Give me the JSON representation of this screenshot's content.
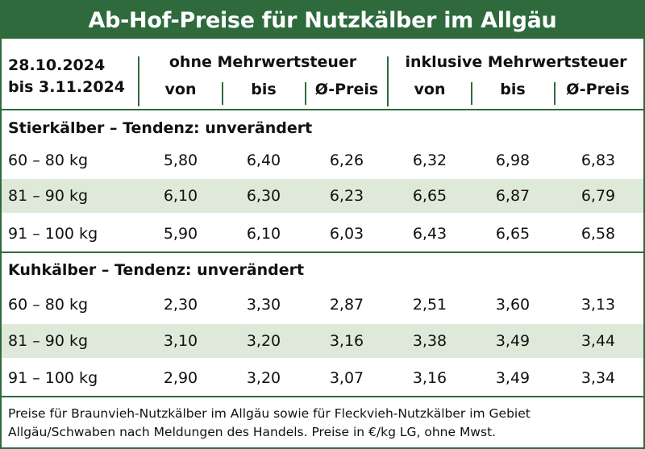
{
  "title": "Ab-Hof-Preise für Nutzkälber im Allgäu",
  "period": {
    "line1": "28.10.2024",
    "line2": "bis 3.11.2024"
  },
  "groups": {
    "without_vat": "ohne Mehrwertsteuer",
    "with_vat": "inklusive Mehrwertsteuer"
  },
  "columns": [
    "von",
    "bis",
    "Ø-Preis",
    "von",
    "bis",
    "Ø-Preis"
  ],
  "sections": [
    {
      "title": "Stierkälber – Tendenz: unverändert",
      "rows": [
        {
          "label": "60 – 80 kg",
          "values": [
            "5,80",
            "6,40",
            "6,26",
            "6,32",
            "6,98",
            "6,83"
          ]
        },
        {
          "label": "81 – 90 kg",
          "values": [
            "6,10",
            "6,30",
            "6,23",
            "6,65",
            "6,87",
            "6,79"
          ]
        },
        {
          "label": "91 – 100 kg",
          "values": [
            "5,90",
            "6,10",
            "6,03",
            "6,43",
            "6,65",
            "6,58"
          ]
        }
      ]
    },
    {
      "title": "Kuhkälber – Tendenz: unverändert",
      "rows": [
        {
          "label": "60 – 80 kg",
          "values": [
            "2,30",
            "3,30",
            "2,87",
            "2,51",
            "3,60",
            "3,13"
          ]
        },
        {
          "label": "81 – 90 kg",
          "values": [
            "3,10",
            "3,20",
            "3,16",
            "3,38",
            "3,49",
            "3,44"
          ]
        },
        {
          "label": "91 – 100 kg",
          "values": [
            "2,90",
            "3,20",
            "3,07",
            "3,16",
            "3,49",
            "3,34"
          ]
        }
      ]
    }
  ],
  "footer": "Preise für Braunvieh-Nutzkälber im Allgäu sowie für Fleckvieh-Nutzkälber im Gebiet Allgäu/Schwaben nach Meldungen des Handels. Preise in €/kg LG, ohne Mwst.",
  "colors": {
    "green": "#2e6a3c",
    "row_shade": "#dfe9d9"
  }
}
